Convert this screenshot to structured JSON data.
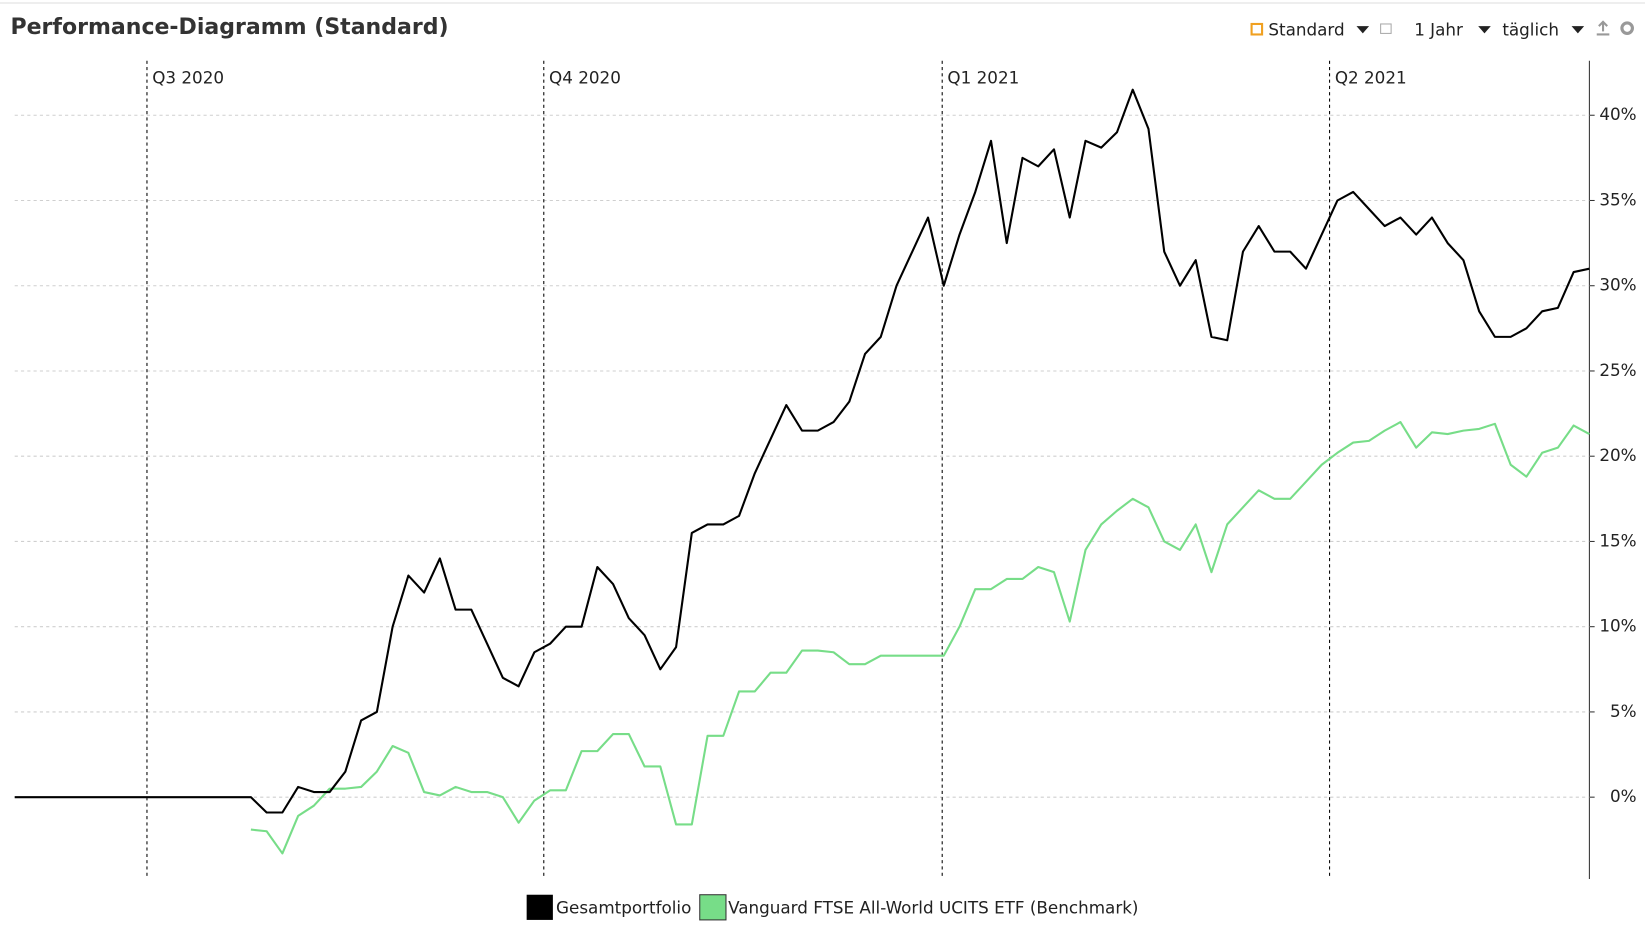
{
  "header": {
    "title": "Performance-Diagramm (Standard)",
    "view": "Standard",
    "period": "1 Jahr",
    "interval": "täglich"
  },
  "chart_data": {
    "type": "line",
    "xlim": [
      0,
      100
    ],
    "quarter_markers": [
      {
        "label": "Q3 2020",
        "position": 8.4
      },
      {
        "label": "Q4 2020",
        "position": 33.6
      },
      {
        "label": "Q1 2021",
        "position": 58.9
      },
      {
        "label": "Q2 2021",
        "position": 83.5
      }
    ],
    "ylim": [
      -4.8,
      43.2
    ],
    "yticks": [
      {
        "value": 0,
        "label": "0%"
      },
      {
        "value": 5,
        "label": "5%"
      },
      {
        "value": 10,
        "label": "10%"
      },
      {
        "value": 15,
        "label": "15%"
      },
      {
        "value": 20,
        "label": "20%"
      },
      {
        "value": 25,
        "label": "25%"
      },
      {
        "value": 30,
        "label": "30%"
      },
      {
        "value": 35,
        "label": "35%"
      },
      {
        "value": 40,
        "label": "40%"
      }
    ],
    "grid": true,
    "series": [
      {
        "name": "Gesamtportfolio",
        "color": "#000000",
        "values": [
          0,
          0,
          0,
          0,
          0,
          0,
          0,
          0,
          0,
          0,
          0,
          0,
          0,
          0,
          0,
          0,
          -0.9,
          -0.9,
          0.6,
          0.3,
          0.3,
          1.5,
          4.5,
          5,
          10,
          13,
          12,
          14,
          11,
          11,
          9,
          7,
          6.5,
          8.5,
          9,
          10,
          10,
          13.5,
          12.5,
          10.5,
          9.5,
          7.5,
          8.8,
          15.5,
          16,
          16,
          16.5,
          19,
          21,
          23,
          21.5,
          21.5,
          22,
          23.2,
          26,
          27,
          30,
          32,
          34,
          30,
          33,
          35.5,
          38.5,
          32.5,
          37.5,
          37,
          38,
          34,
          38.5,
          38.1,
          39,
          41.5,
          39.2,
          32,
          30,
          31.5,
          27,
          26.8,
          32,
          33.5,
          32,
          32,
          31,
          33,
          35,
          35.5,
          34.5,
          33.5,
          34,
          33,
          34,
          32.5,
          31.5,
          28.5,
          27,
          27,
          27.5,
          28.5,
          28.7,
          30.8,
          31
        ]
      },
      {
        "name": "Vanguard FTSE All-World UCITS ETF (Benchmark)",
        "color": "#77dd88",
        "values": [
          null,
          null,
          null,
          null,
          null,
          null,
          null,
          null,
          null,
          null,
          null,
          null,
          null,
          null,
          null,
          -1.9,
          -2,
          -3.3,
          -1.1,
          -0.5,
          0.5,
          0.5,
          0.6,
          1.5,
          3,
          2.6,
          0.3,
          0.1,
          0.6,
          0.3,
          0.3,
          0,
          -1.5,
          -0.2,
          0.4,
          0.4,
          2.7,
          2.7,
          3.7,
          3.7,
          1.8,
          1.8,
          -1.6,
          -1.6,
          3.6,
          3.6,
          6.2,
          6.2,
          7.3,
          7.3,
          8.6,
          8.6,
          8.5,
          7.8,
          7.8,
          8.3,
          8.3,
          8.3,
          8.3,
          8.3,
          10,
          12.2,
          12.2,
          12.8,
          12.8,
          13.5,
          13.2,
          10.3,
          14.5,
          16,
          16.8,
          17.5,
          17,
          15,
          14.5,
          16,
          13.2,
          16,
          17,
          18,
          17.5,
          17.5,
          18.5,
          19.5,
          20.2,
          20.8,
          20.9,
          21.5,
          22,
          20.5,
          21.4,
          21.3,
          21.5,
          21.6,
          21.9,
          19.5,
          18.8,
          20.2,
          20.5,
          21.8,
          21.3
        ]
      }
    ]
  }
}
